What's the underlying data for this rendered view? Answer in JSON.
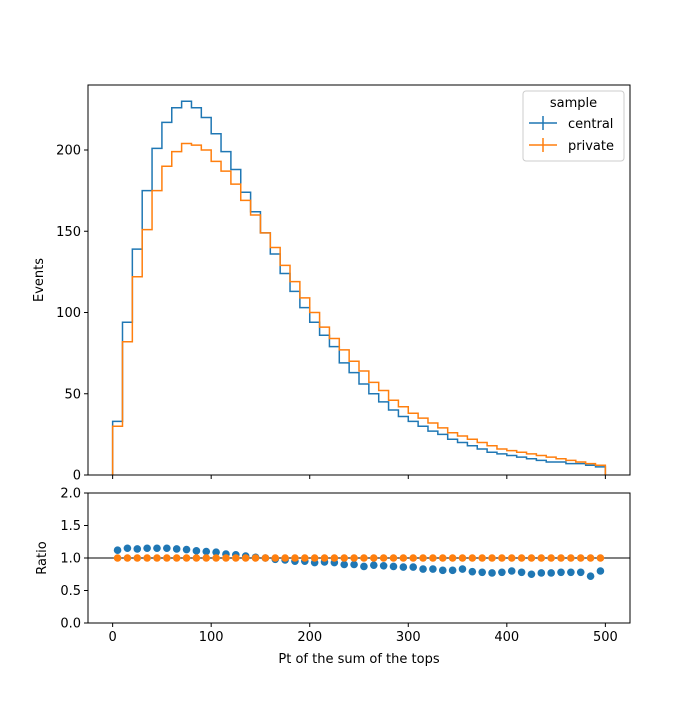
{
  "chart_data": [
    {
      "type": "line",
      "drawstyle": "steps",
      "ylabel": "Events",
      "xlim": [
        -25,
        525
      ],
      "ylim": [
        0,
        240
      ],
      "yticks": [
        0,
        50,
        100,
        150,
        200
      ],
      "xticks": [
        0,
        100,
        200,
        300,
        400,
        500
      ],
      "bin_edges": [
        0,
        10,
        20,
        30,
        40,
        50,
        60,
        70,
        80,
        90,
        100,
        110,
        120,
        130,
        140,
        150,
        160,
        170,
        180,
        190,
        200,
        210,
        220,
        230,
        240,
        250,
        260,
        270,
        280,
        290,
        300,
        310,
        320,
        330,
        340,
        350,
        360,
        370,
        380,
        390,
        400,
        410,
        420,
        430,
        440,
        450,
        460,
        470,
        480,
        490,
        500
      ],
      "legend": {
        "title": "sample",
        "location": "upper right"
      },
      "series": [
        {
          "name": "central",
          "color": "#1f77b4",
          "values": [
            33,
            94,
            139,
            175,
            201,
            217,
            226,
            230,
            226,
            220,
            210,
            199,
            188,
            174,
            162,
            149,
            136,
            124,
            113,
            103,
            94,
            86,
            79,
            69,
            63,
            56,
            50,
            45,
            40,
            36,
            33,
            30,
            27,
            25,
            22,
            20,
            18,
            16,
            14,
            13,
            12,
            11,
            10,
            9,
            8,
            8,
            7,
            7,
            6,
            5
          ]
        },
        {
          "name": "private",
          "color": "#ff7f0e",
          "values": [
            30,
            82,
            122,
            151,
            175,
            190,
            199,
            204,
            203,
            200,
            193,
            187,
            179,
            169,
            160,
            149,
            140,
            129,
            119,
            109,
            100,
            91,
            84,
            77,
            70,
            64,
            57,
            52,
            46,
            42,
            38,
            35,
            32,
            29,
            26,
            24,
            22,
            20,
            18,
            16,
            15,
            14,
            13,
            12,
            11,
            10,
            9,
            8,
            7,
            6
          ]
        }
      ]
    },
    {
      "type": "scatter",
      "ylabel": "Ratio",
      "xlabel": "Pt of the sum of the tops",
      "xlim": [
        -25,
        525
      ],
      "ylim": [
        0,
        2
      ],
      "yticks": [
        "0.0",
        "0.5",
        "1.0",
        "1.5",
        "2.0"
      ],
      "xticks": [
        0,
        100,
        200,
        300,
        400,
        500
      ],
      "reference_line": 1.0,
      "x": [
        5,
        15,
        25,
        35,
        45,
        55,
        65,
        75,
        85,
        95,
        105,
        115,
        125,
        135,
        145,
        155,
        165,
        175,
        185,
        195,
        205,
        215,
        225,
        235,
        245,
        255,
        265,
        275,
        285,
        295,
        305,
        315,
        325,
        335,
        345,
        355,
        365,
        375,
        385,
        395,
        405,
        415,
        425,
        435,
        445,
        455,
        465,
        475,
        485,
        495
      ],
      "series": [
        {
          "name": "central",
          "color": "#1f77b4",
          "values": [
            1.12,
            1.15,
            1.14,
            1.15,
            1.15,
            1.15,
            1.14,
            1.13,
            1.11,
            1.1,
            1.09,
            1.06,
            1.05,
            1.03,
            1.01,
            1.0,
            0.98,
            0.97,
            0.95,
            0.95,
            0.93,
            0.94,
            0.93,
            0.9,
            0.9,
            0.87,
            0.89,
            0.88,
            0.87,
            0.86,
            0.86,
            0.83,
            0.83,
            0.81,
            0.81,
            0.83,
            0.79,
            0.78,
            0.77,
            0.78,
            0.8,
            0.78,
            0.75,
            0.77,
            0.77,
            0.78,
            0.78,
            0.78,
            0.72,
            0.8
          ]
        },
        {
          "name": "private",
          "color": "#ff7f0e",
          "values": [
            1,
            1,
            1,
            1,
            1,
            1,
            1,
            1,
            1,
            1,
            1,
            1,
            1,
            1,
            1,
            1,
            1,
            1,
            1,
            1,
            1,
            1,
            1,
            1,
            1,
            1,
            1,
            1,
            1,
            1,
            1,
            1,
            1,
            1,
            1,
            1,
            1,
            1,
            1,
            1,
            1,
            1,
            1,
            1,
            1,
            1,
            1,
            1,
            1,
            1
          ]
        }
      ]
    }
  ]
}
